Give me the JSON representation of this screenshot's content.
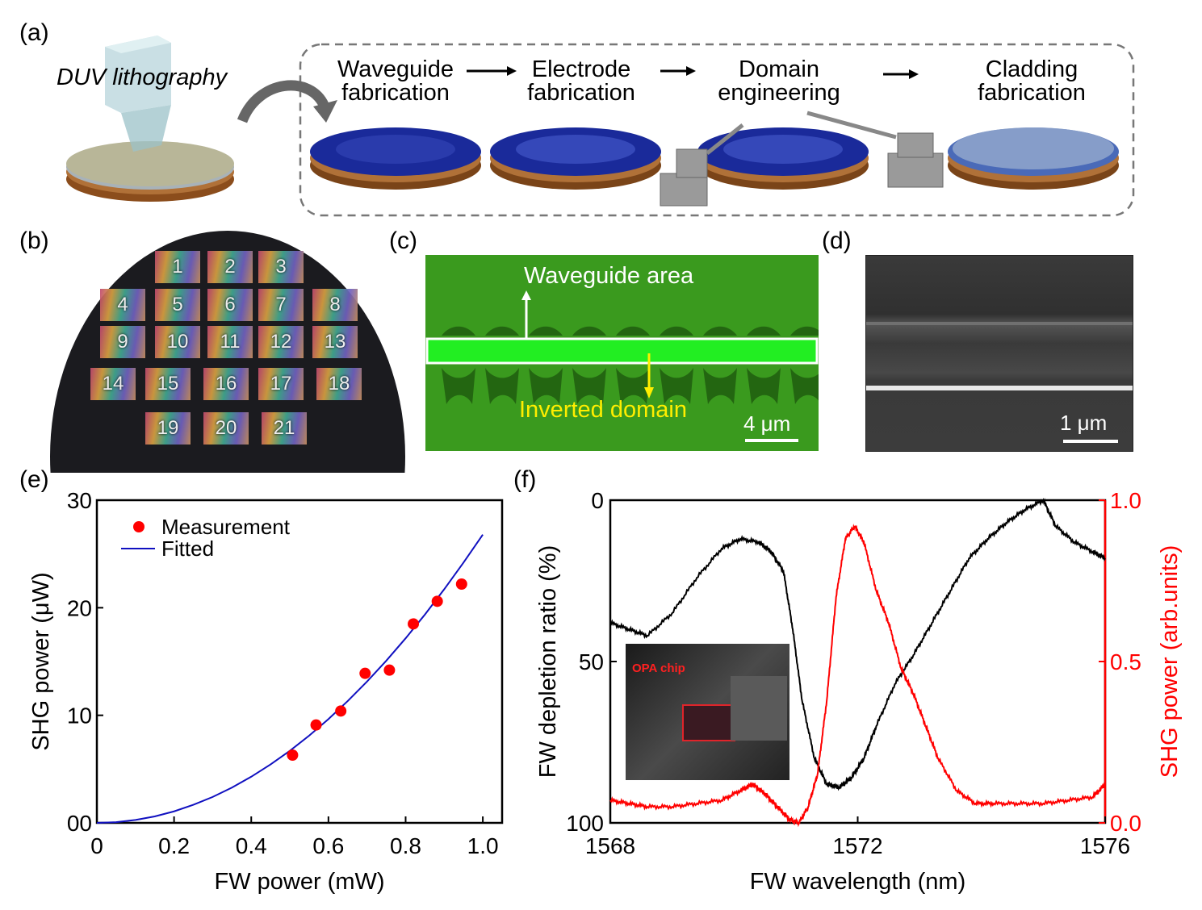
{
  "panel_labels": {
    "a": "(a)",
    "b": "(b)",
    "c": "(c)",
    "d": "(d)",
    "e": "(e)",
    "f": "(f)"
  },
  "panel_a": {
    "lithography": "DUV lithography",
    "steps": [
      {
        "line1": "Waveguide",
        "line2": "fabrication"
      },
      {
        "line1": "Electrode",
        "line2": "fabrication"
      },
      {
        "line1": "Domain",
        "line2": "engineering"
      },
      {
        "line1": "Cladding",
        "line2": "fabrication"
      }
    ],
    "colors": {
      "wafer_blue": "#1a2a9a",
      "wafer_copper": "#a0602a",
      "dashed_box": "#777777"
    }
  },
  "panel_b": {
    "chip_numbers": [
      "1",
      "2",
      "3",
      "4",
      "5",
      "6",
      "7",
      "8",
      "9",
      "10",
      "11",
      "12",
      "13",
      "14",
      "15",
      "16",
      "17",
      "18",
      "19",
      "20",
      "21"
    ]
  },
  "panel_c": {
    "waveguide_area": "Waveguide area",
    "inverted_domain": "Inverted domain",
    "scale_bar": "4 μm",
    "colors": {
      "background": "#3aa01e",
      "highlight": "#22ee22",
      "inverted_text": "#ffee00"
    }
  },
  "panel_d": {
    "scale_bar": "1 μm"
  },
  "chart_data": [
    {
      "type": "scatter",
      "panel": "(e)",
      "xlabel": "FW power (mW)",
      "ylabel": "SHG power (μW)",
      "xlim": [
        0,
        1.05
      ],
      "ylim": [
        0,
        30
      ],
      "x_ticks": [
        "0",
        "0.2",
        "0.4",
        "0.6",
        "0.8",
        "1.0"
      ],
      "y_ticks": [
        "00",
        "10",
        "20",
        "30"
      ],
      "legend": [
        "Measurement",
        "Fitted"
      ],
      "legend_position": "top-left",
      "series": [
        {
          "name": "Measurement",
          "color": "#ff0000",
          "x": [
            0.507,
            0.568,
            0.632,
            0.695,
            0.758,
            0.82,
            0.882,
            0.945
          ],
          "y": [
            6.3,
            9.1,
            10.4,
            13.9,
            14.2,
            18.5,
            20.6,
            22.2
          ]
        },
        {
          "name": "Fitted",
          "color": "#1010c0",
          "x": [
            0,
            0.05,
            0.1,
            0.15,
            0.2,
            0.25,
            0.3,
            0.35,
            0.4,
            0.45,
            0.5,
            0.55,
            0.6,
            0.65,
            0.7,
            0.75,
            0.8,
            0.85,
            0.9,
            0.95,
            1.0
          ],
          "y": [
            0,
            0.07,
            0.27,
            0.6,
            1.07,
            1.68,
            2.41,
            3.28,
            4.29,
            5.43,
            6.7,
            8.11,
            9.65,
            11.33,
            13.14,
            15.08,
            17.16,
            19.37,
            21.72,
            24.2,
            26.8
          ]
        }
      ]
    },
    {
      "type": "line",
      "panel": "(f)",
      "xlabel": "FW wavelength (nm)",
      "ylabel_left": "FW depletion ratio (%)",
      "ylabel_right": "SHG power (arb.units)",
      "xlim": [
        1568,
        1576
      ],
      "ylim_left": [
        100,
        0
      ],
      "ylim_right": [
        0,
        1.0
      ],
      "x_ticks": [
        "1568",
        "1572",
        "1576"
      ],
      "y_ticks_left": [
        "0",
        "50",
        "100"
      ],
      "y_ticks_right": [
        "1.0",
        "0.5",
        "0.0"
      ],
      "inset_label": "OPA chip",
      "series": [
        {
          "name": "FW depletion ratio",
          "axis": "left",
          "color": "#000000",
          "x": [
            1568.0,
            1568.3,
            1568.6,
            1569.0,
            1569.4,
            1569.8,
            1570.1,
            1570.4,
            1570.6,
            1570.8,
            1570.95,
            1571.1,
            1571.3,
            1571.5,
            1571.7,
            1571.9,
            1572.1,
            1572.3,
            1572.6,
            1572.9,
            1573.2,
            1573.5,
            1573.8,
            1574.1,
            1574.4,
            1574.7,
            1575.0,
            1575.2,
            1575.5,
            1575.8,
            1576.0
          ],
          "y": [
            38,
            40,
            42,
            35,
            24,
            15,
            12,
            13,
            16,
            22,
            40,
            62,
            80,
            88,
            89,
            86,
            80,
            70,
            57,
            48,
            38,
            28,
            18,
            12,
            7,
            3,
            0,
            8,
            13,
            16,
            18
          ]
        },
        {
          "name": "SHG power",
          "axis": "right",
          "color": "#ff0000",
          "x": [
            1568.0,
            1568.3,
            1568.6,
            1569.0,
            1569.4,
            1569.8,
            1570.1,
            1570.3,
            1570.5,
            1570.7,
            1570.9,
            1571.05,
            1571.2,
            1571.35,
            1571.5,
            1571.65,
            1571.8,
            1571.95,
            1572.1,
            1572.3,
            1572.5,
            1572.7,
            1572.9,
            1573.1,
            1573.3,
            1573.6,
            1573.9,
            1574.2,
            1574.6,
            1575.0,
            1575.4,
            1575.8,
            1576.0
          ],
          "y": [
            0.07,
            0.06,
            0.05,
            0.05,
            0.06,
            0.07,
            0.1,
            0.12,
            0.09,
            0.05,
            0.01,
            0.0,
            0.05,
            0.15,
            0.38,
            0.7,
            0.88,
            0.92,
            0.87,
            0.72,
            0.62,
            0.48,
            0.4,
            0.3,
            0.2,
            0.1,
            0.06,
            0.06,
            0.06,
            0.06,
            0.07,
            0.08,
            0.12
          ]
        }
      ]
    }
  ]
}
